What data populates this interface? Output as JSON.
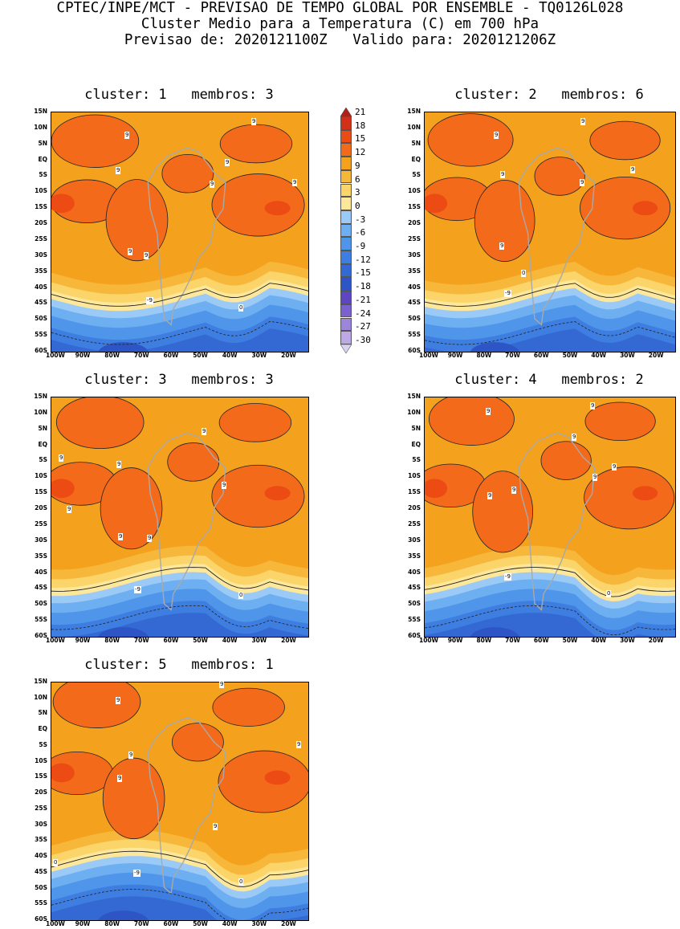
{
  "header": {
    "line1": "CPTEC/INPE/MCT - PREVISAO DE TEMPO GLOBAL POR ENSEMBLE - TQ0126L028",
    "line2": "Cluster Medio para a Temperatura (C) em 700 hPa",
    "line3": "Previsao de: 2020121100Z   Valido para: 2020121206Z"
  },
  "axes": {
    "lat_labels": [
      "15N",
      "10N",
      "5N",
      "EQ",
      "5S",
      "10S",
      "15S",
      "20S",
      "25S",
      "30S",
      "35S",
      "40S",
      "45S",
      "50S",
      "55S",
      "60S"
    ],
    "lon_labels": [
      "100W",
      "90W",
      "80W",
      "70W",
      "60W",
      "50W",
      "40W",
      "30W",
      "20W"
    ]
  },
  "colorbar": {
    "labels": [
      "21",
      "18",
      "15",
      "12",
      "9",
      "6",
      "3",
      "0",
      "-3",
      "-6",
      "-9",
      "-12",
      "-15",
      "-18",
      "-21",
      "-24",
      "-27",
      "-30"
    ],
    "colors": [
      "#b1201a",
      "#d3301a",
      "#ed4b14",
      "#f36a1a",
      "#f4a21d",
      "#f7b73a",
      "#fbd46a",
      "#fde79a",
      "#9ccaf6",
      "#6eaff1",
      "#4f95ea",
      "#3e7ee0",
      "#3468d3",
      "#2d55c6",
      "#5e45c4",
      "#7b61d0",
      "#9d85dc",
      "#bda9e6",
      "#dcd1f0"
    ]
  },
  "clusters": [
    {
      "title": "cluster: 1   membros: 3",
      "labels": [
        "9",
        "9",
        "9",
        "9",
        "9",
        "9",
        "9",
        "9",
        "-9",
        "0"
      ]
    },
    {
      "title": "cluster: 2   membros: 6",
      "labels": [
        "9",
        "9",
        "9",
        "9",
        "9",
        "9",
        "-9",
        "0"
      ]
    },
    {
      "title": "cluster: 3   membros: 3",
      "labels": [
        "9",
        "9",
        "9",
        "9",
        "9",
        "9",
        "9",
        "-9",
        "0"
      ]
    },
    {
      "title": "cluster: 4   membros: 2",
      "labels": [
        "9",
        "9",
        "9",
        "9",
        "9",
        "9",
        "9",
        "-9",
        "0"
      ]
    },
    {
      "title": "cluster: 5   membros: 1",
      "labels": [
        "9",
        "9",
        "9",
        "9",
        "9",
        "9",
        "-9",
        "0",
        "0"
      ]
    }
  ]
}
